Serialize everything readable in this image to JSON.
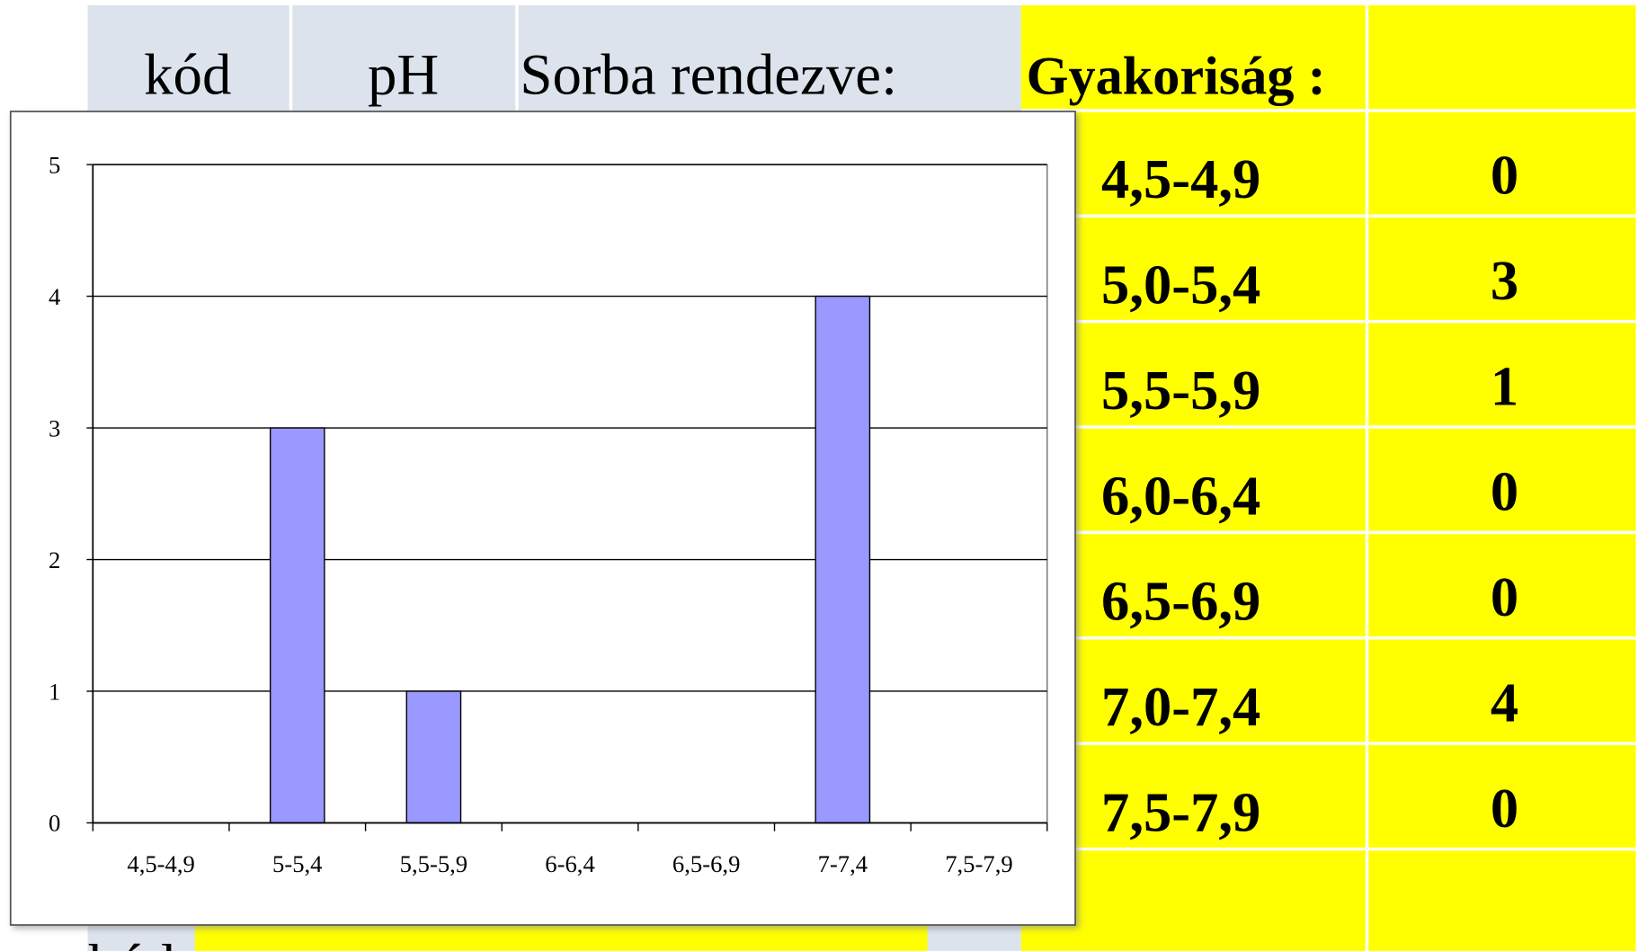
{
  "table": {
    "header": [
      "kód",
      "pH",
      "Sorba rendezve:",
      "Gyakoriság :"
    ],
    "rows": [
      [
        "4,5-4,9",
        0
      ],
      [
        "5,0-5,4",
        3
      ],
      [
        "5,5-5,9",
        1
      ],
      [
        "6,0-6,4",
        0
      ],
      [
        "6,5-6,9",
        0
      ],
      [
        "7,0-7,4",
        4
      ],
      [
        "7,5-7,9",
        0
      ]
    ],
    "footer": "kód"
  },
  "chart_data": {
    "type": "bar",
    "categories": [
      "4,5-4,9",
      "5-5,4",
      "5,5-5,9",
      "6-6,4",
      "6,5-6,9",
      "7-7,4",
      "7,5-7,9"
    ],
    "values": [
      0,
      3,
      1,
      0,
      0,
      4,
      0
    ],
    "color": "#9999ff",
    "ylim": [
      0,
      5
    ],
    "yticks": [
      0,
      1,
      2,
      3,
      4,
      5
    ],
    "grid": true
  }
}
